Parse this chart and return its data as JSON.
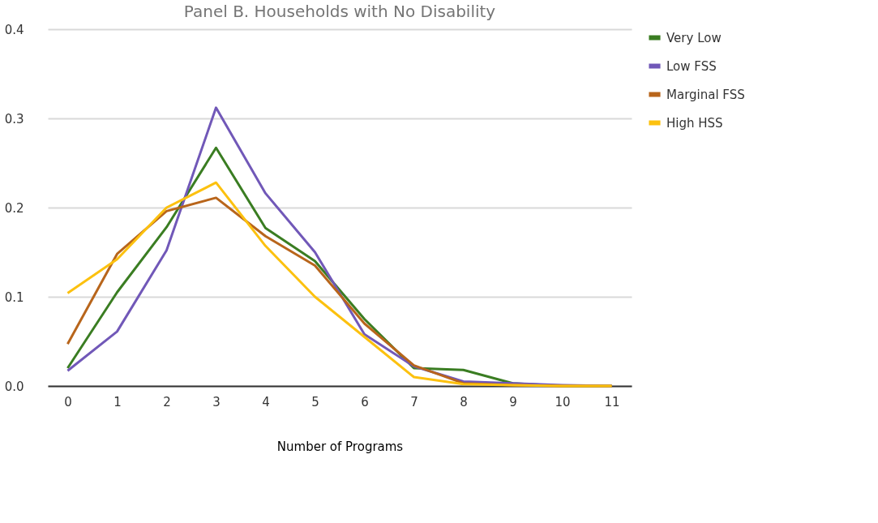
{
  "chart_data": {
    "type": "line",
    "title": "Panel B. Households with No Disability",
    "xlabel": "Number of Programs",
    "categories": [
      "0",
      "1",
      "2",
      "3",
      "4",
      "5",
      "6",
      "7",
      "8",
      "9",
      "10",
      "11"
    ],
    "series": [
      {
        "name": "Very Low",
        "color": "#3a7d22",
        "values": [
          0.02,
          0.105,
          0.178,
          0.267,
          0.177,
          0.14,
          0.075,
          0.02,
          0.018,
          0.003,
          0,
          0
        ]
      },
      {
        "name": "Low FSS",
        "color": "#7158b8",
        "values": [
          0.017,
          0.061,
          0.152,
          0.312,
          0.216,
          0.15,
          0.058,
          0.022,
          0.005,
          0.003,
          0.001,
          0
        ]
      },
      {
        "name": "Marginal FSS",
        "color": "#b8651b",
        "values": [
          0.047,
          0.148,
          0.196,
          0.211,
          0.168,
          0.135,
          0.07,
          0.023,
          0.003,
          0.001,
          0,
          0
        ]
      },
      {
        "name": "High HSS",
        "color": "#fcc10f",
        "values": [
          0.104,
          0.142,
          0.2,
          0.228,
          0.157,
          0.1,
          0.055,
          0.01,
          0.002,
          0.001,
          0,
          0
        ]
      }
    ],
    "ylim": [
      0,
      0.4
    ],
    "yticks": [
      {
        "value": 0,
        "label": "0.0"
      },
      0.1,
      0.2,
      0.3,
      0.4
    ],
    "grid": "y",
    "legend": "top right",
    "marker": "none",
    "line_style": "solid"
  }
}
